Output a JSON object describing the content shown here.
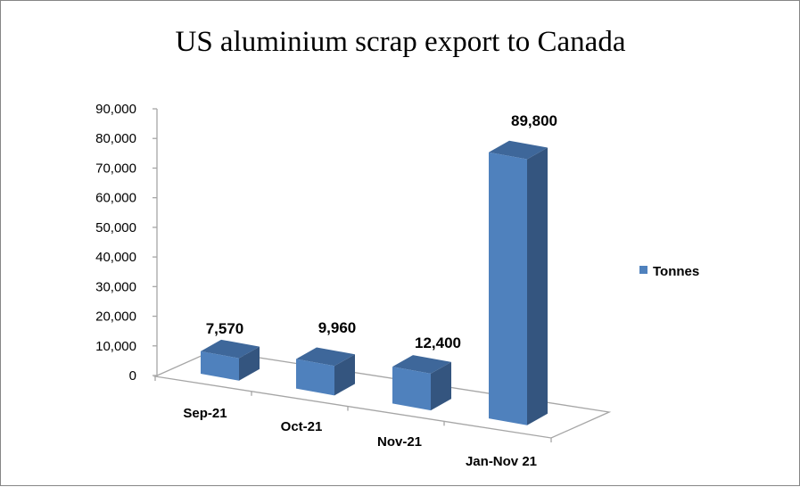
{
  "chart_data": {
    "type": "bar",
    "style": "3d-column",
    "title": "US aluminium scrap export to Canada",
    "categories": [
      "Sep-21",
      "Oct-21",
      "Nov-21",
      "Jan-Nov 21"
    ],
    "series": [
      {
        "name": "Tonnes",
        "values": [
          7570,
          9960,
          12400,
          89800
        ],
        "color": "#4F81BD"
      }
    ],
    "data_labels": [
      "7,570",
      "9,960",
      "12,400",
      "89,800"
    ],
    "y_ticks": [
      "0",
      "10,000",
      "20,000",
      "30,000",
      "40,000",
      "50,000",
      "60,000",
      "70,000",
      "80,000",
      "90,000"
    ],
    "ylim": [
      0,
      90000
    ],
    "xlabel": "",
    "ylabel": "",
    "grid": false,
    "legend": {
      "position": "right",
      "entries": [
        "Tonnes"
      ]
    }
  }
}
